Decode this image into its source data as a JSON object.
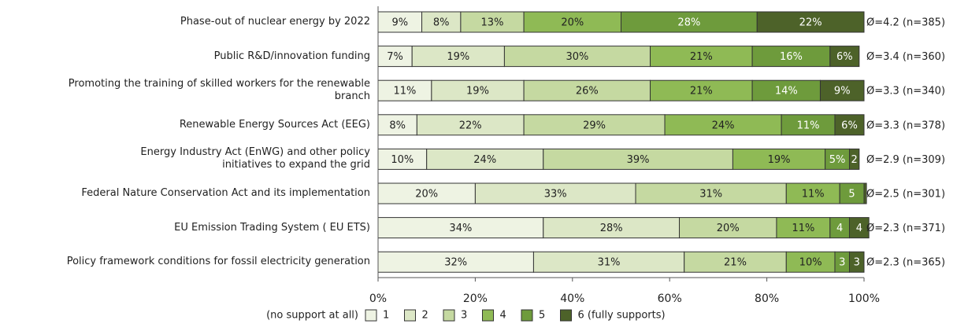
{
  "chart_data": {
    "type": "stacked_barh",
    "categories": [
      "Phase-out of nuclear energy by 2022",
      "Public R&D/innovation funding",
      "Promoting  the training of skilled workers for the renewable\nbranch",
      "Renewable Energy Sources Act (EEG)",
      "Energy Industry Act (EnWG) and other policy\ninitiatives to expand the grid",
      "Federal Nature Conservation Act and its implementation",
      "EU Emission Trading System ( EU ETS)",
      "Policy framework conditions for fossil electricity generation"
    ],
    "series": [
      {
        "name": "1",
        "color": "#eef3e3",
        "values": [
          9,
          7,
          11,
          8,
          10,
          20,
          34,
          32
        ],
        "value_labels": [
          "9%",
          "7%",
          "11%",
          "8%",
          "10%",
          "20%",
          "34%",
          "32%"
        ]
      },
      {
        "name": "2",
        "color": "#dce7c6",
        "values": [
          8,
          19,
          19,
          22,
          24,
          33,
          28,
          31
        ],
        "value_labels": [
          "8%",
          "19%",
          "19%",
          "22%",
          "24%",
          "33%",
          "28%",
          "31%"
        ]
      },
      {
        "name": "3",
        "color": "#c5d9a1",
        "values": [
          13,
          30,
          26,
          29,
          39,
          31,
          20,
          21
        ],
        "value_labels": [
          "13%",
          "30%",
          "26%",
          "29%",
          "39%",
          "31%",
          "20%",
          "21%"
        ]
      },
      {
        "name": "4",
        "color": "#8fba55",
        "values": [
          20,
          21,
          21,
          24,
          19,
          11,
          11,
          10
        ],
        "value_labels": [
          "20%",
          "21%",
          "21%",
          "24%",
          "19%",
          "11%",
          "11%",
          "10%"
        ]
      },
      {
        "name": "5",
        "color": "#6e9b3c",
        "values": [
          28,
          16,
          14,
          11,
          5,
          5,
          4,
          3
        ],
        "value_labels": [
          "28%",
          "16%",
          "14%",
          "11%",
          "5%",
          "5",
          "4",
          "3"
        ]
      },
      {
        "name": "6 (fully supports)",
        "color": "#4d6229",
        "values": [
          22,
          6,
          9,
          6,
          2,
          0.5,
          4,
          3
        ],
        "value_labels": [
          "22%",
          "6%",
          "9%",
          "6%",
          "2",
          null,
          "4",
          "3"
        ]
      }
    ],
    "annotations": [
      "Ø=4.2 (n=385)",
      "Ø=3.4 (n=360)",
      "Ø=3.3 (n=340)",
      "Ø=3.3 (n=378)",
      "Ø=2.9 (n=309)",
      "Ø=2.5 (n=301)",
      "Ø=2.3 (n=371)",
      "Ø=2.3 (n=365)"
    ],
    "legend_prefix": "(no support at all)",
    "xlim": [
      0,
      100
    ],
    "xticks": [
      {
        "value": 0,
        "label": "0%"
      },
      {
        "value": 20,
        "label": "20%"
      },
      {
        "value": 40,
        "label": "40%"
      },
      {
        "value": 60,
        "label": "60%"
      },
      {
        "value": 80,
        "label": "80%"
      },
      {
        "value": 100,
        "label": "100%"
      }
    ]
  }
}
